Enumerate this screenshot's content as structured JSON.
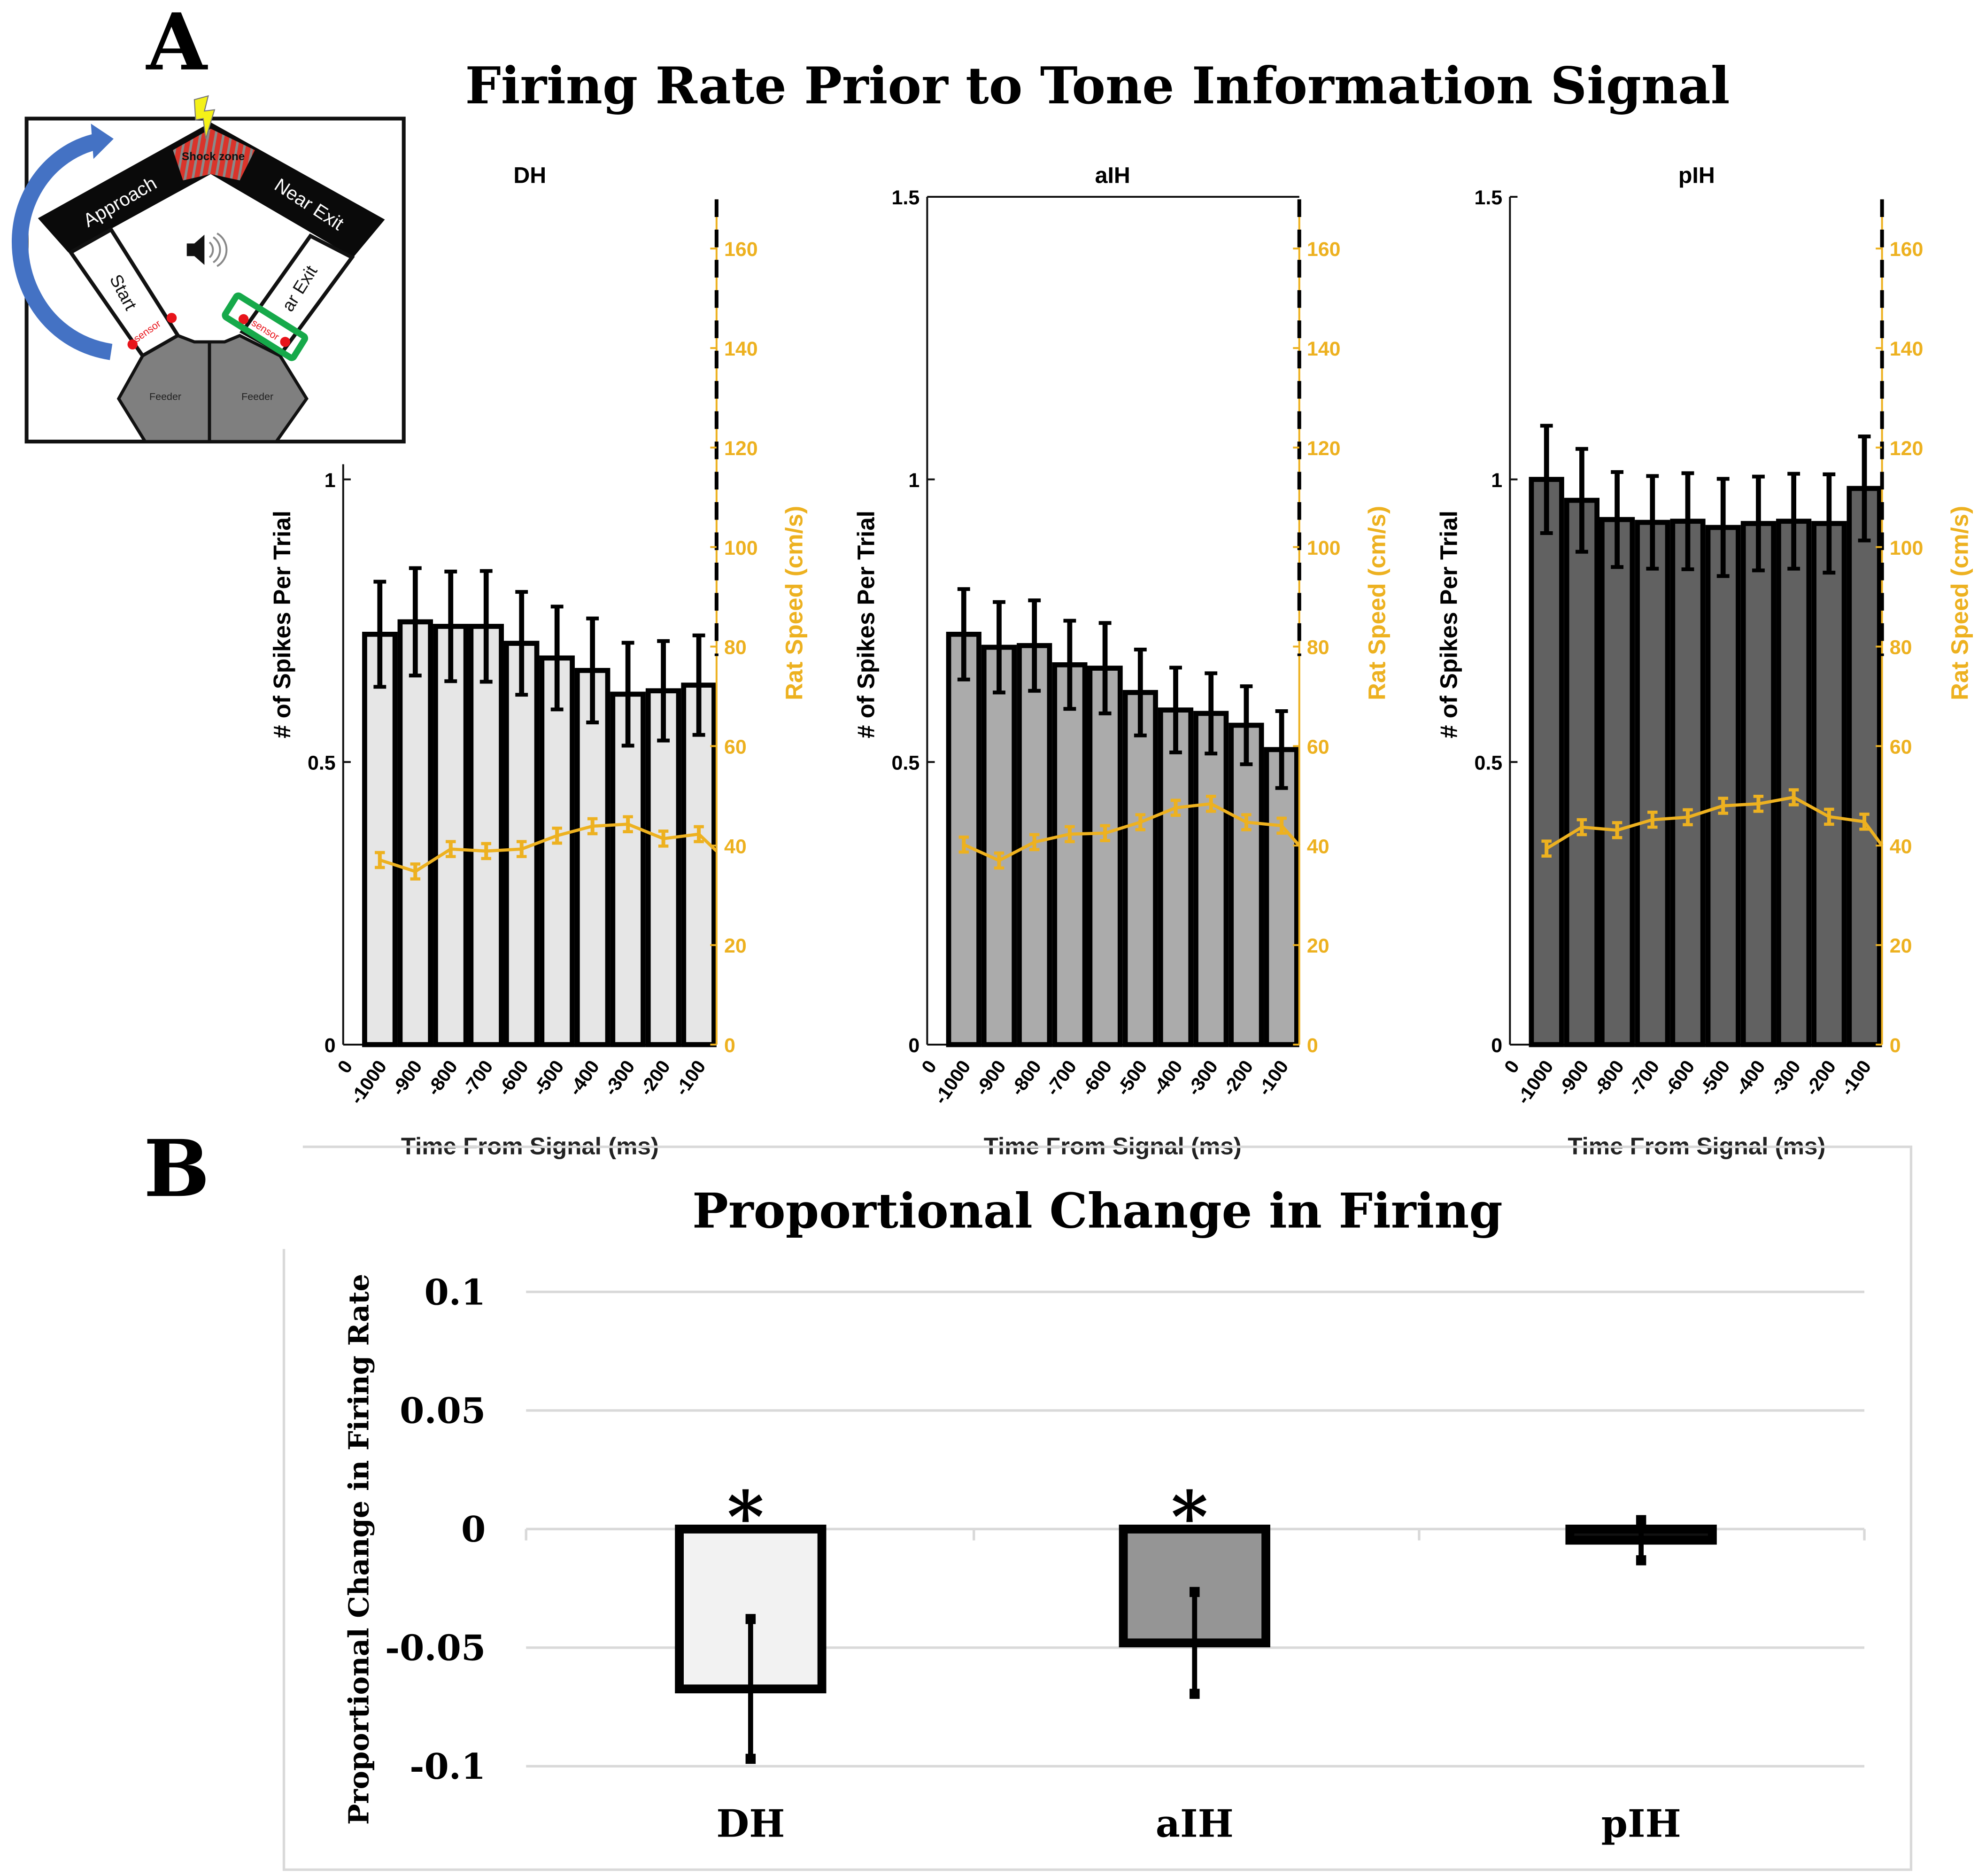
{
  "panel_a": {
    "letter": "A",
    "title": "Firing Rate Prior to Tone Information Signal",
    "diagram": {
      "labels": {
        "shock_zone": "Shock zone",
        "approach": "Approach",
        "near_exit": "Near Exit",
        "start": "Start",
        "near_exit_partial": "ar Exit",
        "sensor": "sensor",
        "feeder": "Feeder"
      },
      "colors": {
        "arrow": "#4472c4",
        "shock": "#d9342b",
        "highlight": "#16a94a",
        "sensor": "#e8141b",
        "feeder": "#7f7f7f",
        "bolt": "#f4f118"
      }
    }
  },
  "panel_b": {
    "letter": "B"
  },
  "chart_data": [
    {
      "type": "bar",
      "title": "DH",
      "xlabel": "Time From Signal (ms)",
      "ylabel": "# of Spikes Per Trial",
      "y2label": "Rat Speed (cm/s)",
      "x_start_label": "0",
      "categories": [
        "-1000",
        "-900",
        "-800",
        "-700",
        "-600",
        "-500",
        "-400",
        "-300",
        "-200",
        "-100"
      ],
      "values": [
        0.726,
        0.748,
        0.74,
        0.74,
        0.71,
        0.684,
        0.662,
        0.62,
        0.626,
        0.636
      ],
      "errors": [
        0.093,
        0.095,
        0.097,
        0.098,
        0.091,
        0.091,
        0.092,
        0.091,
        0.088,
        0.088
      ],
      "speed": [
        37.1,
        34.8,
        39.3,
        38.9,
        39.3,
        42.0,
        43.9,
        44.3,
        41.4,
        42.3
      ],
      "speed_end": 38.9,
      "speed_errors": [
        1.5,
        1.5,
        1.5,
        1.5,
        1.5,
        1.5,
        1.5,
        1.5,
        1.5,
        1.5
      ],
      "ylim": [
        0,
        1
      ],
      "yticks": [
        "0",
        "0.5",
        "1"
      ],
      "y2lim": [
        0,
        170
      ],
      "y2ticks": [
        "0",
        "20",
        "40",
        "60",
        "80",
        "100",
        "120",
        "140",
        "160"
      ],
      "bar_color": "#e6e6e6",
      "speed_color": "#edb120"
    },
    {
      "type": "bar",
      "title": "aIH",
      "xlabel": "Time From Signal (ms)",
      "ylabel": "# of Spikes Per Trial",
      "y2label": "Rat Speed (cm/s)",
      "x_start_label": "0",
      "categories": [
        "-1000",
        "-900",
        "-800",
        "-700",
        "-600",
        "-500",
        "-400",
        "-300",
        "-200",
        "-100"
      ],
      "values": [
        0.726,
        0.703,
        0.706,
        0.672,
        0.666,
        0.623,
        0.592,
        0.586,
        0.565,
        0.522
      ],
      "errors": [
        0.08,
        0.08,
        0.08,
        0.078,
        0.08,
        0.076,
        0.075,
        0.071,
        0.069,
        0.068
      ],
      "speed": [
        40.2,
        37.0,
        40.7,
        42.3,
        42.5,
        44.7,
        47.6,
        48.4,
        44.7,
        44.0
      ],
      "speed_end": 40.0,
      "speed_errors": [
        1.5,
        1.5,
        1.5,
        1.5,
        1.5,
        1.5,
        1.5,
        1.5,
        1.5,
        1.5
      ],
      "ylim": [
        0,
        1.5
      ],
      "yticks": [
        "0",
        "0.5",
        "1",
        "1.5"
      ],
      "y2lim": [
        0,
        170
      ],
      "y2ticks": [
        "0",
        "20",
        "40",
        "60",
        "80",
        "100",
        "120",
        "140",
        "160"
      ],
      "bar_color": "#ababab",
      "speed_color": "#edb120"
    },
    {
      "type": "bar",
      "title": "pIH",
      "xlabel": "Time From Signal (ms)",
      "ylabel": "# of Spikes Per Trial",
      "y2label": "Rat Speed (cm/s)",
      "x_start_label": "0",
      "categories": [
        "-1000",
        "-900",
        "-800",
        "-700",
        "-600",
        "-500",
        "-400",
        "-300",
        "-200",
        "-100"
      ],
      "values": [
        1.0,
        0.963,
        0.929,
        0.924,
        0.926,
        0.915,
        0.922,
        0.926,
        0.922,
        0.984
      ],
      "errors": [
        0.095,
        0.091,
        0.084,
        0.082,
        0.085,
        0.086,
        0.083,
        0.084,
        0.087,
        0.092
      ],
      "speed": [
        39.4,
        43.7,
        43.1,
        45.2,
        45.7,
        48.0,
        48.4,
        49.7,
        45.8,
        44.8
      ],
      "speed_end": 40.0,
      "speed_errors": [
        1.5,
        1.5,
        1.5,
        1.5,
        1.5,
        1.5,
        1.5,
        1.5,
        1.5,
        1.5
      ],
      "ylim": [
        0,
        1.5
      ],
      "yticks": [
        "0",
        "0.5",
        "1",
        "1.5"
      ],
      "y2lim": [
        0,
        170
      ],
      "y2ticks": [
        "0",
        "20",
        "40",
        "60",
        "80",
        "100",
        "120",
        "140",
        "160"
      ],
      "bar_color": "#616161",
      "speed_color": "#edb120"
    },
    {
      "type": "bar",
      "title": "Proportional Change in Firing",
      "xlabel": "",
      "ylabel": "Proportional Change in Firing Rate",
      "categories": [
        "DH",
        "aIH",
        "pIH"
      ],
      "values": [
        -0.0674,
        -0.048,
        -0.0047
      ],
      "errors": [
        0.03,
        0.022,
        0.009
      ],
      "significance": [
        "*",
        "*",
        ""
      ],
      "ylim": [
        -0.1,
        0.1
      ],
      "yticks": [
        "0.1",
        "0.05",
        "0",
        "-0.05",
        "-0.1"
      ],
      "grid": true,
      "bar_colors": [
        "#f2f2f2",
        "#959595",
        "#111111"
      ]
    }
  ]
}
